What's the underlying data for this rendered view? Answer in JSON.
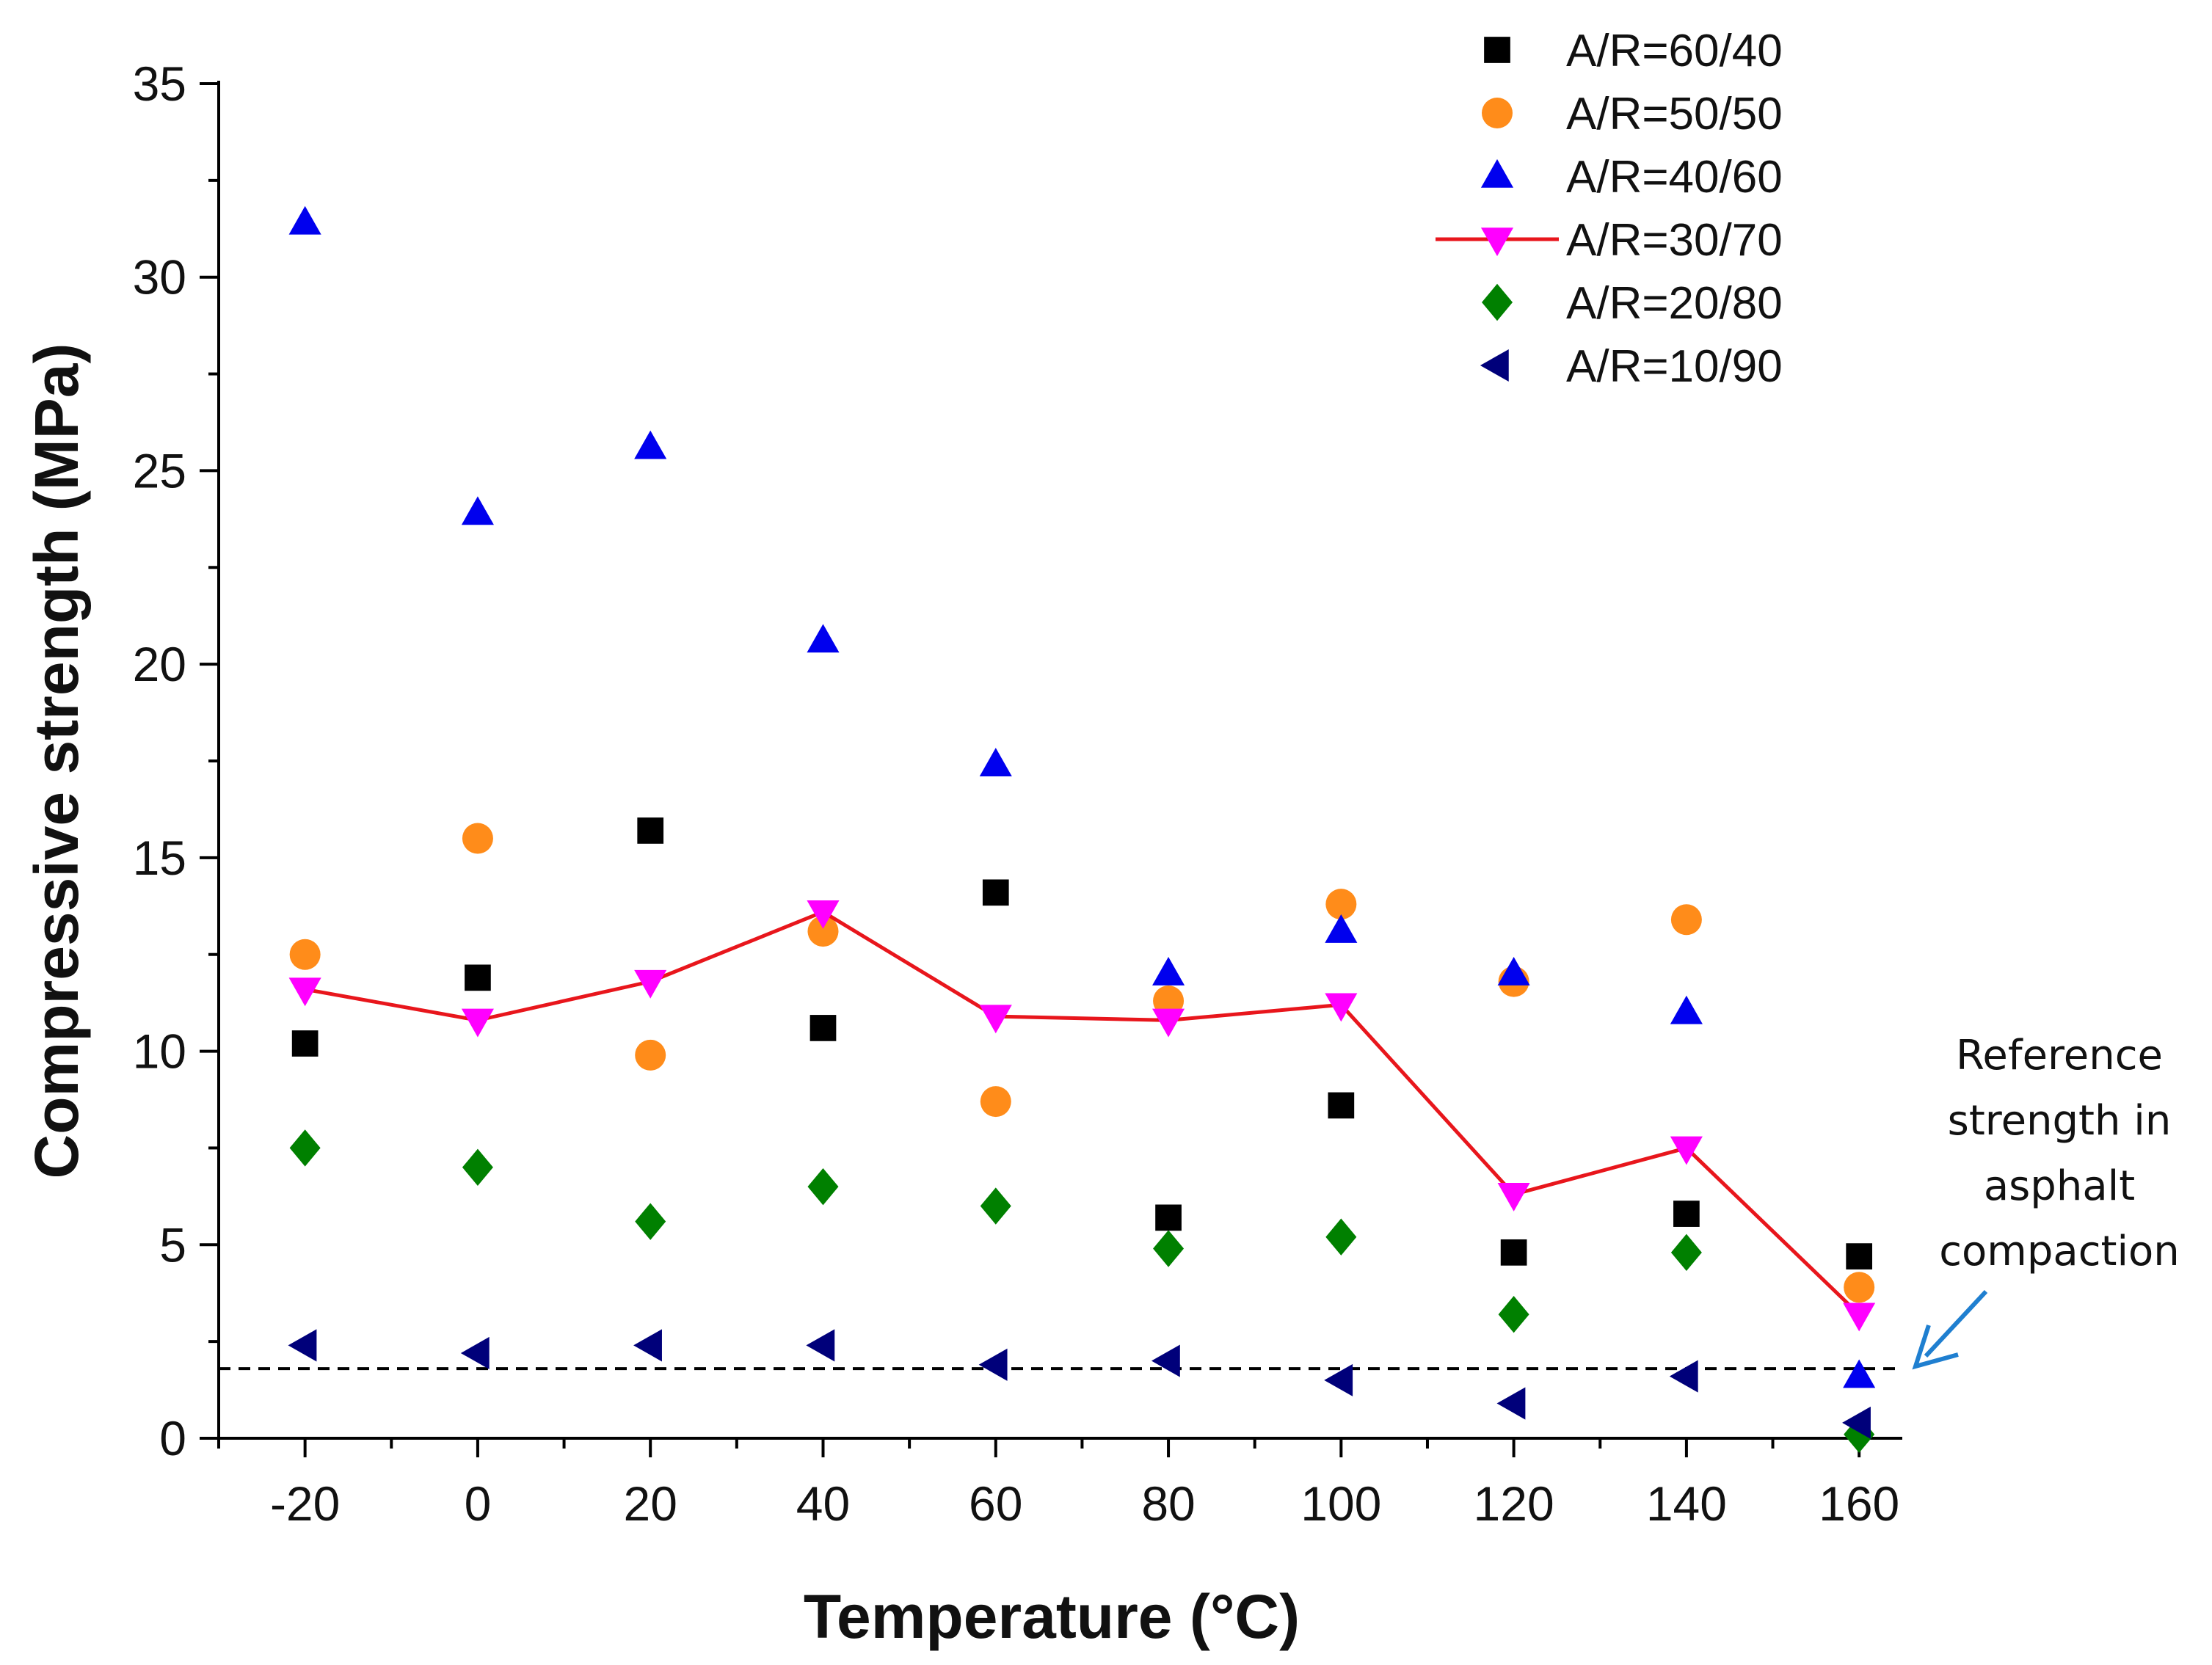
{
  "chart_data": {
    "type": "scatter",
    "xlabel": "Temperature (°C)",
    "ylabel": "Compressive strength (MPa)",
    "xlim": [
      -30,
      165
    ],
    "ylim": [
      0,
      35
    ],
    "x_ticks": [
      "-20",
      "0",
      "20",
      "40",
      "60",
      "80",
      "100",
      "120",
      "140",
      "160"
    ],
    "y_ticks": [
      "0",
      "5",
      "10",
      "15",
      "20",
      "25",
      "30",
      "35"
    ],
    "x": [
      -20,
      0,
      20,
      40,
      60,
      80,
      100,
      120,
      140,
      160
    ],
    "grid": false,
    "legend_position": "top-right",
    "series": [
      {
        "name": "A/R=60/40",
        "marker": "square",
        "color": "#000000",
        "line": false,
        "values": [
          10.2,
          11.9,
          15.7,
          10.6,
          14.1,
          5.7,
          8.6,
          4.8,
          5.8,
          4.7
        ]
      },
      {
        "name": "A/R=50/50",
        "marker": "circle",
        "color": "#ff8c1a",
        "line": false,
        "values": [
          12.5,
          15.5,
          9.9,
          13.1,
          8.7,
          11.3,
          13.8,
          11.8,
          13.4,
          3.9
        ]
      },
      {
        "name": "A/R=40/60",
        "marker": "triangle-up",
        "color": "#0000ee",
        "line": false,
        "values": [
          31.4,
          23.9,
          25.6,
          20.6,
          17.4,
          12.0,
          13.1,
          12.0,
          11.0,
          1.6
        ]
      },
      {
        "name": "A/R=30/70",
        "marker": "triangle-down",
        "color": "#ff00ff",
        "line": true,
        "line_color": "#e8161c",
        "values": [
          11.6,
          10.8,
          11.8,
          13.6,
          10.9,
          10.8,
          11.2,
          6.3,
          7.5,
          3.2
        ]
      },
      {
        "name": "A/R=20/80",
        "marker": "diamond",
        "color": "#008000",
        "line": false,
        "values": [
          7.5,
          7.0,
          5.6,
          6.5,
          6.0,
          4.9,
          5.2,
          3.2,
          4.8,
          0.1
        ]
      },
      {
        "name": "A/R=10/90",
        "marker": "triangle-left",
        "color": "#00007a",
        "line": false,
        "values": [
          2.4,
          2.2,
          2.4,
          2.4,
          1.9,
          2.0,
          1.5,
          0.9,
          1.6,
          0.4
        ]
      }
    ],
    "reference_line": {
      "value": 1.8,
      "style": "dashed",
      "color": "#000000"
    },
    "annotation": {
      "lines": [
        "Reference",
        "strength in",
        "asphalt",
        "compaction"
      ],
      "arrow_color": "#1f7fd0"
    }
  }
}
